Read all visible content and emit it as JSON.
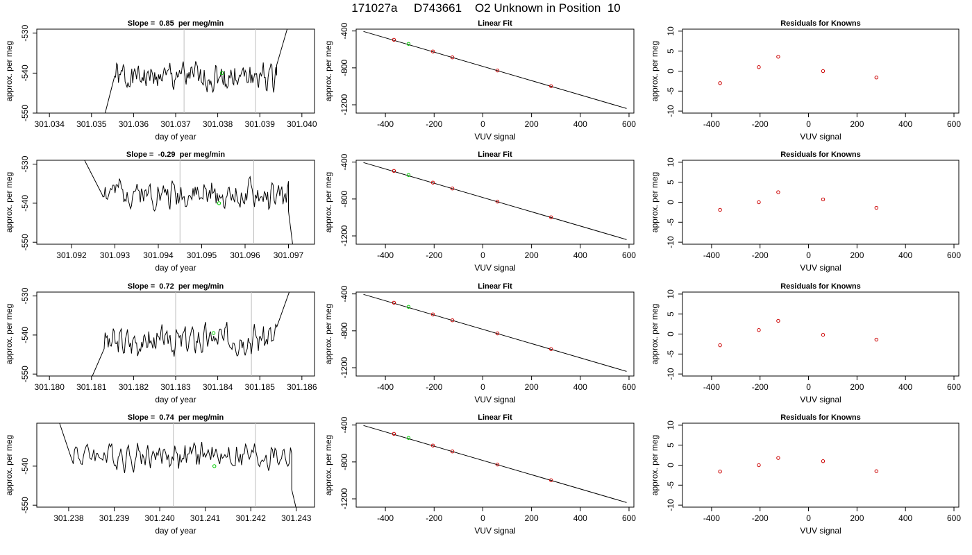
{
  "figure": {
    "title": "171027a     D743661    O2 Unknown in Position  10"
  },
  "rows": [
    {
      "slope_title": "Slope =  0.85  per meg/min"
    },
    {
      "slope_title": "Slope =  -0.29  per meg/min"
    },
    {
      "slope_title": "Slope =  0.72  per meg/min"
    },
    {
      "slope_title": "Slope =  0.74  per meg/min"
    }
  ],
  "chart_data": [
    {
      "type": "line",
      "panel": "time",
      "row": 1,
      "title": "Slope =  0.85  per meg/min",
      "xlabel": "day of year",
      "ylabel": "approx. per meg",
      "xlim": [
        301.0337,
        301.0403
      ],
      "ylim": [
        -550,
        -529
      ],
      "xticks": [
        "301.034",
        "301.035",
        "301.036",
        "301.037",
        "301.038",
        "301.039",
        "301.040"
      ],
      "yticks": [
        "-530",
        "-540",
        "-550"
      ],
      "trace_start": 301.0353,
      "trace_end": 301.0396,
      "entry": [
        301.0353,
        -551
      ],
      "plateau": [
        301.03555,
        -541
      ],
      "exit": [
        301.03965,
        -529
      ],
      "exit_from": [
        301.0394,
        -538
      ],
      "seed": 1,
      "amplitude": 2.6,
      "trend": 0,
      "vlines": [
        301.0372,
        301.0389
      ],
      "marker": [
        301.0381,
        -540
      ]
    },
    {
      "type": "line",
      "panel": "time",
      "row": 2,
      "title": "Slope =  -0.29  per meg/min",
      "xlabel": "day of year",
      "ylabel": "approx. per meg",
      "xlim": [
        301.0912,
        301.0976
      ],
      "ylim": [
        -550.5,
        -529
      ],
      "xticks": [
        "301.092",
        "301.093",
        "301.094",
        "301.095",
        "301.096",
        "301.097"
      ],
      "yticks": [
        "-530",
        "-540",
        "-550"
      ],
      "trace_start": 301.0923,
      "trace_end": 301.0971,
      "entry": [
        301.0923,
        -529
      ],
      "plateau": [
        301.0927,
        -537
      ],
      "exit": [
        301.0971,
        -551
      ],
      "exit_from": [
        301.097,
        -542
      ],
      "seed": 2,
      "amplitude": 2.6,
      "trend": -1.5,
      "vlines": [
        301.0945,
        301.0962
      ],
      "marker": [
        301.0954,
        -540
      ]
    },
    {
      "type": "line",
      "panel": "time",
      "row": 3,
      "title": "Slope =  0.72  per meg/min",
      "xlabel": "day of year",
      "ylabel": "approx. per meg",
      "xlim": [
        301.1797,
        301.1863
      ],
      "ylim": [
        -550.5,
        -529
      ],
      "xticks": [
        "301.180",
        "301.181",
        "301.182",
        "301.183",
        "301.184",
        "301.185",
        "301.186"
      ],
      "yticks": [
        "-530",
        "-540",
        "-550"
      ],
      "trace_start": 301.1808,
      "trace_end": 301.1857,
      "entry": [
        301.181,
        -551
      ],
      "plateau": [
        301.1813,
        -542
      ],
      "exit": [
        301.1857,
        -529
      ],
      "exit_from": [
        301.1854,
        -538
      ],
      "seed": 3,
      "amplitude": 2.6,
      "trend": 1.5,
      "vlines": [
        301.183,
        301.1848
      ],
      "marker": [
        301.1839,
        -539.5
      ]
    },
    {
      "type": "line",
      "panel": "time",
      "row": 4,
      "title": "Slope =  0.74  per meg/min",
      "xlabel": "day of year",
      "ylabel": "approx. per meg",
      "xlim": [
        301.2373,
        301.2434
      ],
      "ylim": [
        -550.5,
        -529
      ],
      "xticks": [
        "301.238",
        "301.239",
        "301.240",
        "301.241",
        "301.242",
        "301.243"
      ],
      "yticks": [
        "-540",
        "-550"
      ],
      "trace_start": 301.2378,
      "trace_end": 301.243,
      "entry": [
        301.2378,
        -529
      ],
      "plateau": [
        301.2381,
        -537
      ],
      "exit": [
        301.243,
        -551
      ],
      "exit_from": [
        301.2429,
        -546
      ],
      "seed": 4,
      "amplitude": 2.6,
      "trend": -0.5,
      "vlines": [
        301.2403,
        301.2421
      ],
      "marker": [
        301.2412,
        -540
      ]
    },
    {
      "type": "scatter",
      "panel": "fit",
      "row": 1,
      "title": "Linear Fit",
      "xlabel": "VUV signal",
      "ylabel": "approx. per meg",
      "xlim": [
        -520,
        620
      ],
      "ylim": [
        -1290,
        -380
      ],
      "xticks": [
        -400,
        -200,
        0,
        200,
        400,
        600
      ],
      "yticks": [
        -400,
        -800,
        -1200
      ],
      "line": [
        [
          -490,
          -405
        ],
        [
          590,
          -1240
        ]
      ],
      "knowns": [
        [
          -365,
          -495
        ],
        [
          -205,
          -622
        ],
        [
          -125,
          -686
        ],
        [
          60,
          -828
        ],
        [
          280,
          -998
        ]
      ],
      "unknown": [
        -305,
        -540
      ]
    },
    {
      "type": "scatter",
      "panel": "fit",
      "row": 2,
      "title": "Linear Fit",
      "xlabel": "VUV signal",
      "ylabel": "approx. per meg",
      "xlim": [
        -520,
        620
      ],
      "ylim": [
        -1290,
        -380
      ],
      "xticks": [
        -400,
        -200,
        0,
        200,
        400,
        600
      ],
      "yticks": [
        -400,
        -800,
        -1200
      ],
      "line": [
        [
          -490,
          -405
        ],
        [
          590,
          -1240
        ]
      ],
      "knowns": [
        [
          -365,
          -495
        ],
        [
          -205,
          -622
        ],
        [
          -125,
          -686
        ],
        [
          60,
          -828
        ],
        [
          280,
          -998
        ]
      ],
      "unknown": [
        -305,
        -540
      ]
    },
    {
      "type": "scatter",
      "panel": "fit",
      "row": 3,
      "title": "Linear Fit",
      "xlabel": "VUV signal",
      "ylabel": "approx. per meg",
      "xlim": [
        -520,
        620
      ],
      "ylim": [
        -1290,
        -380
      ],
      "xticks": [
        -400,
        -200,
        0,
        200,
        400,
        600
      ],
      "yticks": [
        -400,
        -800,
        -1200
      ],
      "line": [
        [
          -490,
          -405
        ],
        [
          590,
          -1240
        ]
      ],
      "knowns": [
        [
          -365,
          -495
        ],
        [
          -205,
          -622
        ],
        [
          -125,
          -686
        ],
        [
          60,
          -828
        ],
        [
          280,
          -998
        ]
      ],
      "unknown": [
        -305,
        -540
      ]
    },
    {
      "type": "scatter",
      "panel": "fit",
      "row": 4,
      "title": "Linear Fit",
      "xlabel": "VUV signal",
      "ylabel": "approx. per meg",
      "xlim": [
        -520,
        620
      ],
      "ylim": [
        -1290,
        -380
      ],
      "xticks": [
        -400,
        -200,
        0,
        200,
        400,
        600
      ],
      "yticks": [
        -400,
        -800,
        -1200
      ],
      "line": [
        [
          -490,
          -405
        ],
        [
          590,
          -1240
        ]
      ],
      "knowns": [
        [
          -365,
          -495
        ],
        [
          -205,
          -622
        ],
        [
          -125,
          -686
        ],
        [
          60,
          -828
        ],
        [
          280,
          -998
        ]
      ],
      "unknown": [
        -305,
        -540
      ]
    },
    {
      "type": "scatter",
      "panel": "residuals",
      "row": 1,
      "title": "Residuals for Knowns",
      "xlabel": "VUV signal",
      "ylabel": "approx. per meg",
      "xlim": [
        -520,
        620
      ],
      "ylim": [
        -10.5,
        10.5
      ],
      "xticks": [
        -400,
        -200,
        0,
        200,
        400,
        600
      ],
      "yticks": [
        -10,
        -5,
        0,
        5,
        10
      ],
      "points": [
        [
          -365,
          -3.0
        ],
        [
          -205,
          1.0
        ],
        [
          -125,
          3.6
        ],
        [
          60,
          0.0
        ],
        [
          280,
          -1.6
        ]
      ]
    },
    {
      "type": "scatter",
      "panel": "residuals",
      "row": 2,
      "title": "Residuals for Knowns",
      "xlabel": "VUV signal",
      "ylabel": "approx. per meg",
      "xlim": [
        -520,
        620
      ],
      "ylim": [
        -10.5,
        10.5
      ],
      "xticks": [
        -400,
        -200,
        0,
        200,
        400,
        600
      ],
      "yticks": [
        -10,
        -5,
        0,
        5,
        10
      ],
      "points": [
        [
          -365,
          -1.9
        ],
        [
          -205,
          0.0
        ],
        [
          -125,
          2.5
        ],
        [
          60,
          0.7
        ],
        [
          280,
          -1.4
        ]
      ]
    },
    {
      "type": "scatter",
      "panel": "residuals",
      "row": 3,
      "title": "Residuals for Knowns",
      "xlabel": "VUV signal",
      "ylabel": "approx. per meg",
      "xlim": [
        -520,
        620
      ],
      "ylim": [
        -10.5,
        10.5
      ],
      "xticks": [
        -400,
        -200,
        0,
        200,
        400,
        600
      ],
      "yticks": [
        -10,
        -5,
        0,
        5,
        10
      ],
      "points": [
        [
          -365,
          -2.8
        ],
        [
          -205,
          1.0
        ],
        [
          -125,
          3.3
        ],
        [
          60,
          -0.2
        ],
        [
          280,
          -1.4
        ]
      ]
    },
    {
      "type": "scatter",
      "panel": "residuals",
      "row": 4,
      "title": "Residuals for Knowns",
      "xlabel": "VUV signal",
      "ylabel": "approx. per meg",
      "xlim": [
        -520,
        620
      ],
      "ylim": [
        -10.5,
        10.5
      ],
      "xticks": [
        -400,
        -200,
        0,
        200,
        400,
        600
      ],
      "yticks": [
        -10,
        -5,
        0,
        5,
        10
      ],
      "points": [
        [
          -365,
          -1.6
        ],
        [
          -205,
          0.0
        ],
        [
          -125,
          1.8
        ],
        [
          60,
          1.0
        ],
        [
          280,
          -1.5
        ]
      ]
    }
  ],
  "colors": {
    "trace": "#000000",
    "fit_line": "#000000",
    "known_point": "#cc0000",
    "unknown_point": "#00cc00",
    "window_line": "#bebebe",
    "axis": "#000000"
  }
}
